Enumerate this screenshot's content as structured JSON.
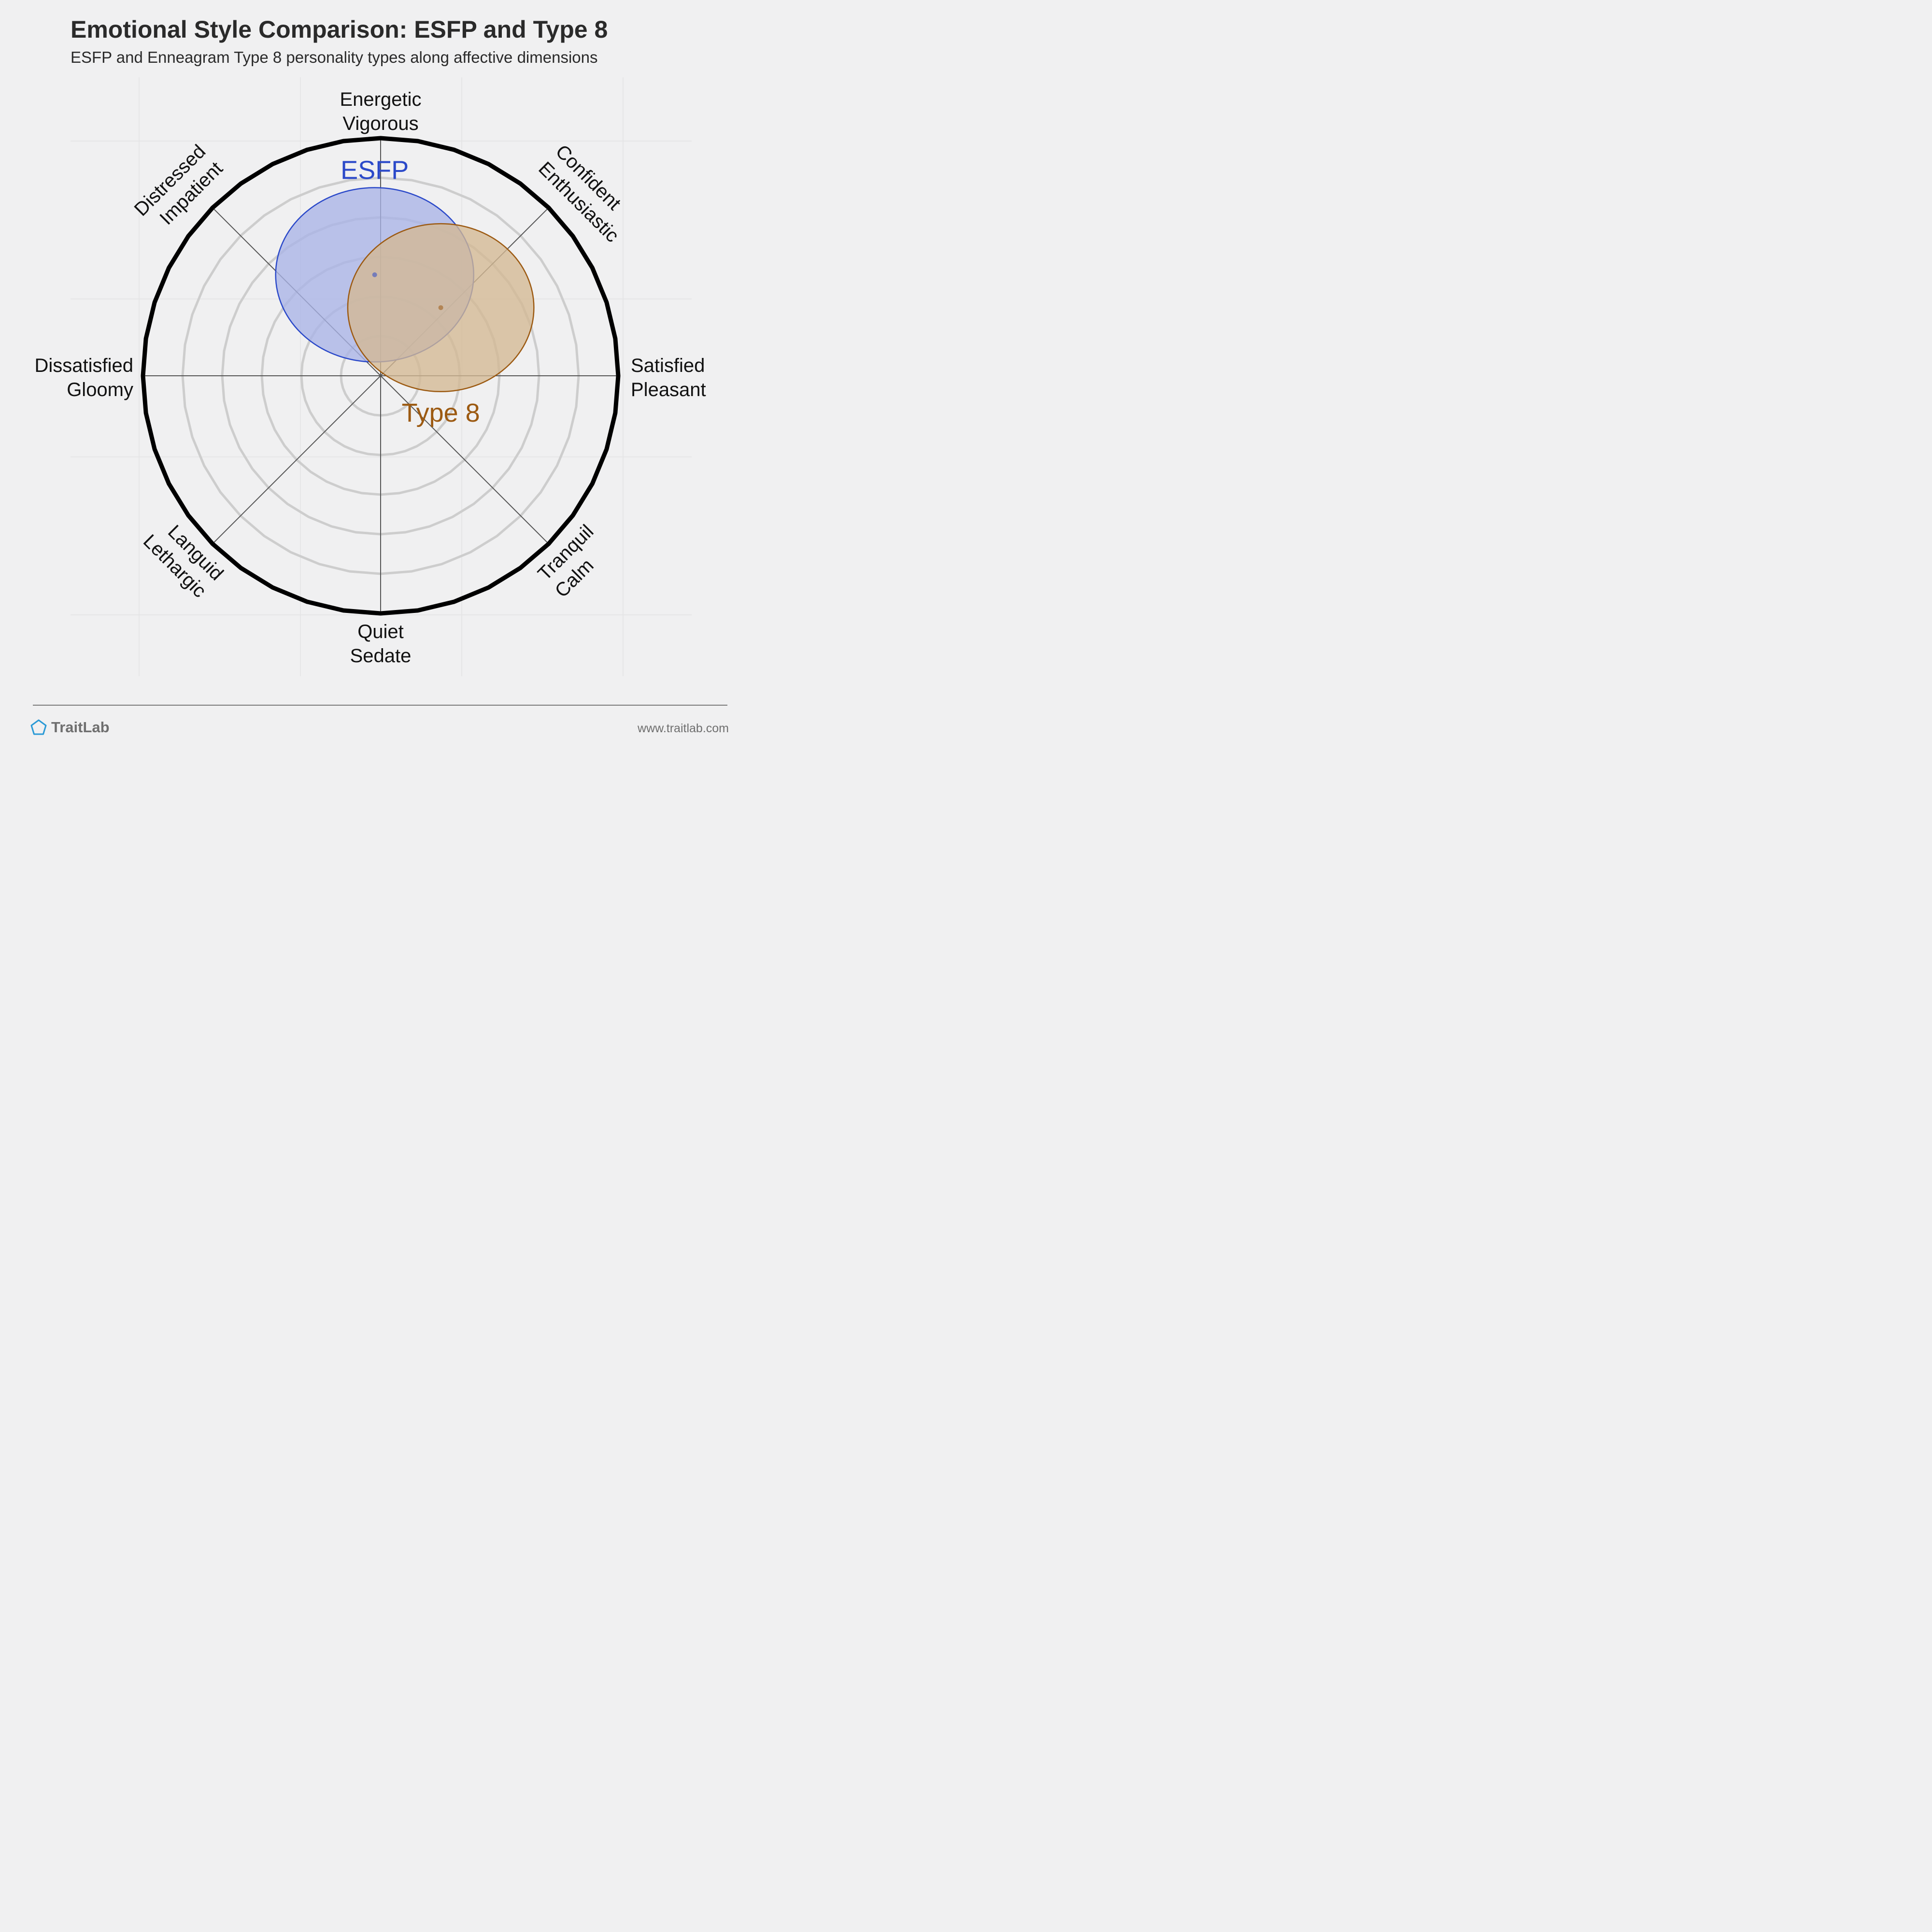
{
  "header": {
    "title": "Emotional Style Comparison: ESFP and Type 8",
    "subtitle": "ESFP and Enneagram Type 8 personality types along affective dimensions"
  },
  "footer": {
    "brand": "TraitLab",
    "brand_icon": "pentagon-icon",
    "website": "www.traitlab.com"
  },
  "chart_data": {
    "type": "radial-circle-plot",
    "rings": 6,
    "radial_range": [
      0,
      6
    ],
    "axes": [
      {
        "angle_deg": 90,
        "lines": [
          "Energetic",
          "Vigorous"
        ]
      },
      {
        "angle_deg": 45,
        "lines": [
          "Confident",
          "Enthusiastic"
        ]
      },
      {
        "angle_deg": 0,
        "lines": [
          "Satisfied",
          "Pleasant"
        ]
      },
      {
        "angle_deg": -45,
        "lines": [
          "Tranquil",
          "Calm"
        ]
      },
      {
        "angle_deg": -90,
        "lines": [
          "Quiet",
          "Sedate"
        ]
      },
      {
        "angle_deg": -135,
        "lines": [
          "Languid",
          "Lethargic"
        ]
      },
      {
        "angle_deg": 180,
        "lines": [
          "Dissatisfied",
          "Gloomy"
        ]
      },
      {
        "angle_deg": 135,
        "lines": [
          "Distressed",
          "Impatient"
        ]
      }
    ],
    "series": [
      {
        "name": "ESFP",
        "x": -0.15,
        "y": 2.55,
        "rx": 2.5,
        "ry": 2.2,
        "color": "#2b49c9",
        "fill": "#a9b4e7"
      },
      {
        "name": "Type 8",
        "x": 1.52,
        "y": 1.72,
        "rx": 2.35,
        "ry": 2.12,
        "color": "#9c5a12",
        "fill": "#d3b894"
      }
    ]
  }
}
